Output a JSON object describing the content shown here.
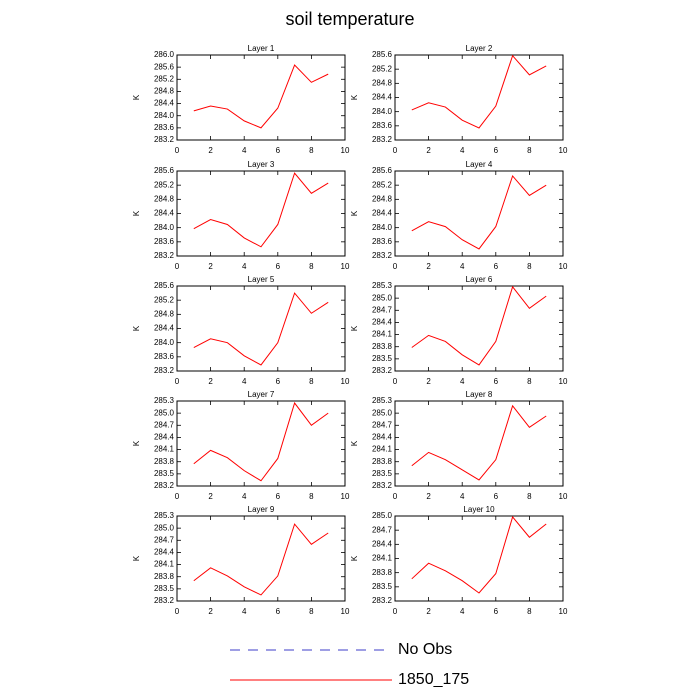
{
  "title": "soil temperature",
  "legend": [
    {
      "label": "No Obs",
      "color": "#3c3cc8",
      "dashed": true
    },
    {
      "label": "1850_175",
      "color": "#ff0000",
      "dashed": false
    }
  ],
  "chart_data": [
    {
      "type": "line",
      "title": "Layer 1",
      "ylabel": "K",
      "color": "#ff0000",
      "x": [
        1,
        2,
        3,
        4,
        5,
        6,
        7,
        8,
        9
      ],
      "values": [
        284.16,
        284.32,
        284.22,
        283.83,
        283.6,
        284.25,
        285.67,
        285.1,
        285.37
      ],
      "xlim": [
        0,
        10
      ],
      "xticks": [
        0,
        2,
        4,
        6,
        8,
        10
      ],
      "ylim": [
        283.2,
        286
      ],
      "yticks": [
        283.2,
        283.6,
        {
          "value": 284,
          "label": "284.0"
        },
        284.4,
        284.8,
        285.2,
        285.6,
        {
          "value": 286,
          "label": "286.0"
        }
      ]
    },
    {
      "type": "line",
      "title": "Layer 2",
      "ylabel": "K",
      "color": "#ff0000",
      "x": [
        1,
        2,
        3,
        4,
        5,
        6,
        7,
        8,
        9
      ],
      "values": [
        284.05,
        284.25,
        284.13,
        283.76,
        283.54,
        284.16,
        285.58,
        285.04,
        285.29
      ],
      "xlim": [
        0,
        10
      ],
      "xticks": [
        0,
        2,
        4,
        6,
        8,
        10
      ],
      "ylim": [
        283.2,
        285.6
      ],
      "yticks": [
        283.2,
        283.6,
        {
          "value": 284,
          "label": "284.0"
        },
        284.4,
        284.8,
        285.2,
        285.6
      ]
    },
    {
      "type": "line",
      "title": "Layer 3",
      "ylabel": "K",
      "color": "#ff0000",
      "x": [
        1,
        2,
        3,
        4,
        5,
        6,
        7,
        8,
        9
      ],
      "values": [
        283.97,
        284.23,
        284.09,
        283.71,
        283.46,
        284.09,
        285.54,
        284.97,
        285.26
      ],
      "xlim": [
        0,
        10
      ],
      "xticks": [
        0,
        2,
        4,
        6,
        8,
        10
      ],
      "ylim": [
        283.2,
        285.6
      ],
      "yticks": [
        283.2,
        283.6,
        {
          "value": 284,
          "label": "284.0"
        },
        284.4,
        284.8,
        285.2,
        285.6
      ]
    },
    {
      "type": "line",
      "title": "Layer 4",
      "ylabel": "K",
      "color": "#ff0000",
      "x": [
        1,
        2,
        3,
        4,
        5,
        6,
        7,
        8,
        9
      ],
      "values": [
        283.91,
        284.17,
        284.03,
        283.66,
        283.4,
        284.03,
        285.46,
        284.91,
        285.2
      ],
      "xlim": [
        0,
        10
      ],
      "xticks": [
        0,
        2,
        4,
        6,
        8,
        10
      ],
      "ylim": [
        283.2,
        285.6
      ],
      "yticks": [
        283.2,
        283.6,
        {
          "value": 284,
          "label": "284.0"
        },
        284.4,
        284.8,
        285.2,
        285.6
      ]
    },
    {
      "type": "line",
      "title": "Layer 5",
      "ylabel": "K",
      "color": "#ff0000",
      "x": [
        1,
        2,
        3,
        4,
        5,
        6,
        7,
        8,
        9
      ],
      "values": [
        283.86,
        284.11,
        284.0,
        283.63,
        283.37,
        284.0,
        285.4,
        284.83,
        285.14
      ],
      "xlim": [
        0,
        10
      ],
      "xticks": [
        0,
        2,
        4,
        6,
        8,
        10
      ],
      "ylim": [
        283.2,
        285.6
      ],
      "yticks": [
        283.2,
        283.6,
        {
          "value": 284,
          "label": "284.0"
        },
        284.4,
        284.8,
        285.2,
        285.6
      ]
    },
    {
      "type": "line",
      "title": "Layer 6",
      "ylabel": "K",
      "color": "#ff0000",
      "x": [
        1,
        2,
        3,
        4,
        5,
        6,
        7,
        8,
        9
      ],
      "values": [
        283.78,
        284.08,
        283.93,
        283.6,
        283.35,
        283.93,
        285.28,
        284.75,
        285.05
      ],
      "xlim": [
        0,
        10
      ],
      "xticks": [
        0,
        2,
        4,
        6,
        8,
        10
      ],
      "ylim": [
        283.2,
        285.3
      ],
      "yticks": [
        283.2,
        283.5,
        283.8,
        284.1,
        284.4,
        284.7,
        {
          "value": 285,
          "label": "285.0"
        },
        285.3
      ]
    },
    {
      "type": "line",
      "title": "Layer 7",
      "ylabel": "K",
      "color": "#ff0000",
      "x": [
        1,
        2,
        3,
        4,
        5,
        6,
        7,
        8,
        9
      ],
      "values": [
        283.75,
        284.08,
        283.9,
        283.58,
        283.33,
        283.88,
        285.25,
        284.7,
        285.0
      ],
      "xlim": [
        0,
        10
      ],
      "xticks": [
        0,
        2,
        4,
        6,
        8,
        10
      ],
      "ylim": [
        283.2,
        285.3
      ],
      "yticks": [
        283.2,
        283.5,
        283.8,
        284.1,
        284.4,
        284.7,
        {
          "value": 285,
          "label": "285.0"
        },
        285.3
      ]
    },
    {
      "type": "line",
      "title": "Layer 8",
      "ylabel": "K",
      "color": "#ff0000",
      "x": [
        1,
        2,
        3,
        4,
        5,
        6,
        7,
        8,
        9
      ],
      "values": [
        283.7,
        284.03,
        283.85,
        283.6,
        283.35,
        283.85,
        285.18,
        284.65,
        284.93
      ],
      "xlim": [
        0,
        10
      ],
      "xticks": [
        0,
        2,
        4,
        6,
        8,
        10
      ],
      "ylim": [
        283.2,
        285.3
      ],
      "yticks": [
        283.2,
        283.5,
        283.8,
        284.1,
        284.4,
        284.7,
        {
          "value": 285,
          "label": "285.0"
        },
        285.3
      ]
    },
    {
      "type": "line",
      "title": "Layer 9",
      "ylabel": "K",
      "color": "#ff0000",
      "x": [
        1,
        2,
        3,
        4,
        5,
        6,
        7,
        8,
        9
      ],
      "values": [
        283.7,
        284.02,
        283.82,
        283.55,
        283.35,
        283.82,
        285.1,
        284.6,
        284.88
      ],
      "xlim": [
        0,
        10
      ],
      "xticks": [
        0,
        2,
        4,
        6,
        8,
        10
      ],
      "ylim": [
        283.2,
        285.3
      ],
      "yticks": [
        283.2,
        283.5,
        283.8,
        284.1,
        284.4,
        284.7,
        {
          "value": 285,
          "label": "285.0"
        },
        285.3
      ]
    },
    {
      "type": "line",
      "title": "Layer 10",
      "ylabel": "K",
      "color": "#ff0000",
      "x": [
        1,
        2,
        3,
        4,
        5,
        6,
        7,
        8,
        9
      ],
      "values": [
        283.67,
        284.0,
        283.84,
        283.63,
        283.37,
        283.78,
        284.98,
        284.55,
        284.83
      ],
      "xlim": [
        0,
        10
      ],
      "xticks": [
        0,
        2,
        4,
        6,
        8,
        10
      ],
      "ylim": [
        283.2,
        285
      ],
      "yticks": [
        283.2,
        283.5,
        283.8,
        284.1,
        284.4,
        284.7,
        {
          "value": 285,
          "label": "285.0"
        }
      ]
    }
  ]
}
